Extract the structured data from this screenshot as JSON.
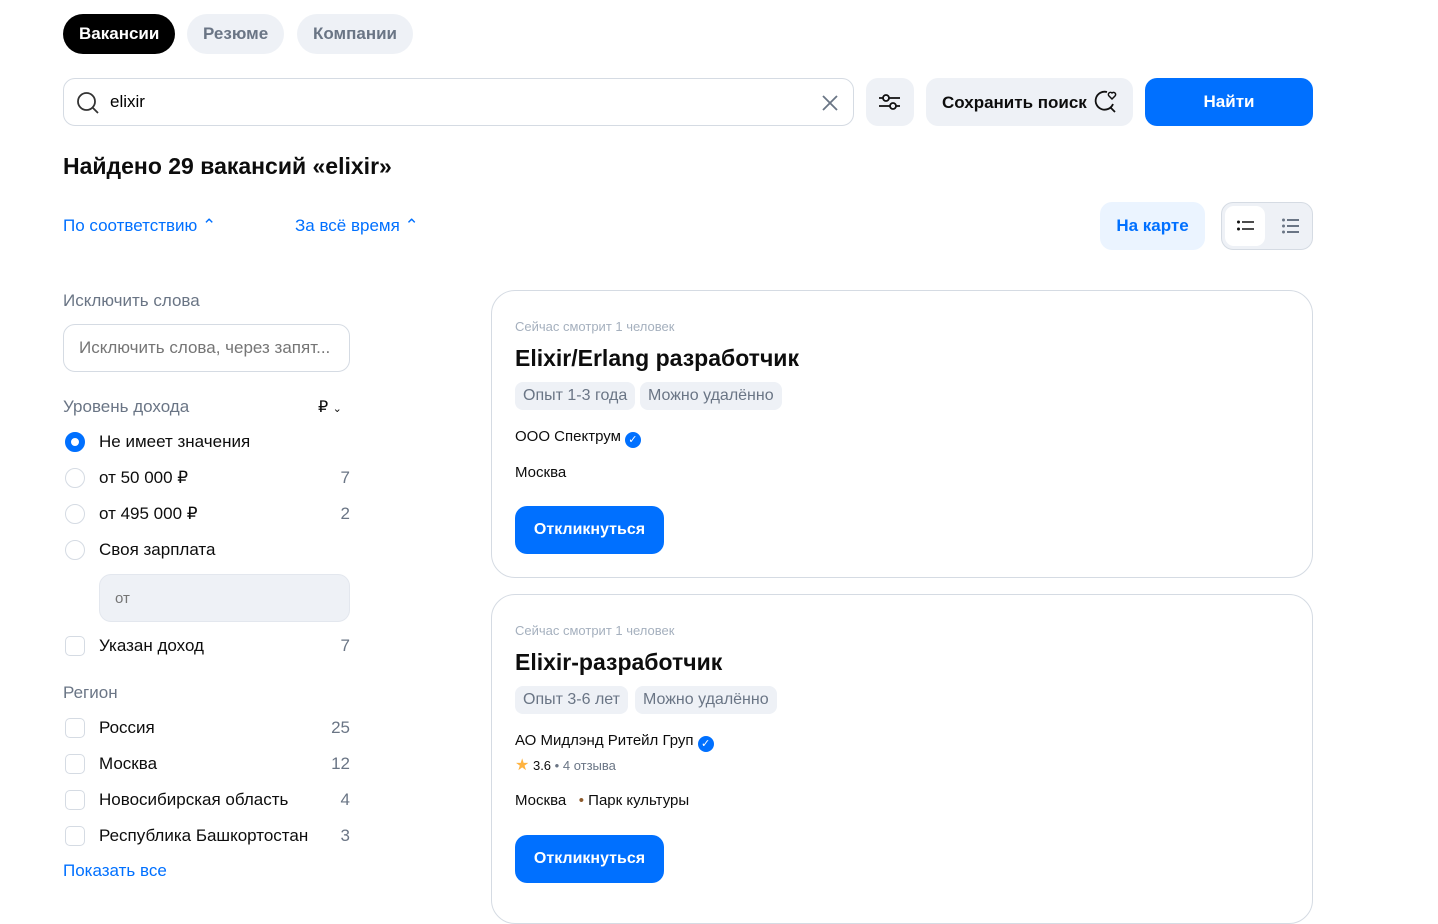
{
  "tabs": [
    {
      "label": "Вакансии",
      "active": true
    },
    {
      "label": "Резюме"
    },
    {
      "label": "Компании"
    }
  ],
  "search": {
    "value": "elixir",
    "filters_icon": "sliders-icon",
    "save_label": "Сохранить поиск",
    "find_label": "Найти"
  },
  "results_title": "Найдено 29 вакансий «elixir»",
  "sort": {
    "order": "По соответствию",
    "period": "За всё время"
  },
  "map_label": "На карте",
  "filters": {
    "exclude_label": "Исключить слова",
    "exclude_placeholder": "Исключить слова, через запят...",
    "income_label": "Уровень дохода",
    "currency": "₽",
    "income_options": [
      {
        "label": "Не имеет значения",
        "count": "",
        "selected": true
      },
      {
        "label": "от 50 000 ₽",
        "count": "7"
      },
      {
        "label": "от 495 000 ₽",
        "count": "2"
      },
      {
        "label": "Своя зарплата",
        "count": ""
      }
    ],
    "own_salary_placeholder": "от",
    "income_specified": {
      "label": "Указан доход",
      "count": "7"
    },
    "region_label": "Регион",
    "regions": [
      {
        "label": "Россия",
        "count": "25"
      },
      {
        "label": "Москва",
        "count": "12"
      },
      {
        "label": "Новосибирская область",
        "count": "4"
      },
      {
        "label": "Республика Башкортостан",
        "count": "3"
      }
    ],
    "show_all": "Показать все"
  },
  "vacancies": [
    {
      "views": "Сейчас смотрит 1 человек",
      "title": "Elixir/Erlang разработчик",
      "chips": [
        "Опыт 1-3 года",
        "Можно удалённо"
      ],
      "company": "ООО Спектрум",
      "city": "Москва",
      "apply": "Откликнуться"
    },
    {
      "views": "Сейчас смотрит 1 человек",
      "title": "Elixir-разработчик",
      "chips": [
        "Опыт 3-6 лет",
        "Можно удалённо"
      ],
      "company": "АО Мидлэнд Ритейл Груп",
      "rating": "3.6",
      "reviews": "4 отзыва",
      "city": "Москва",
      "metro": "Парк культуры",
      "metro_color": "#8d5b2d",
      "apply": "Откликнуться"
    }
  ],
  "colors": {
    "accent": "#0070ff"
  }
}
